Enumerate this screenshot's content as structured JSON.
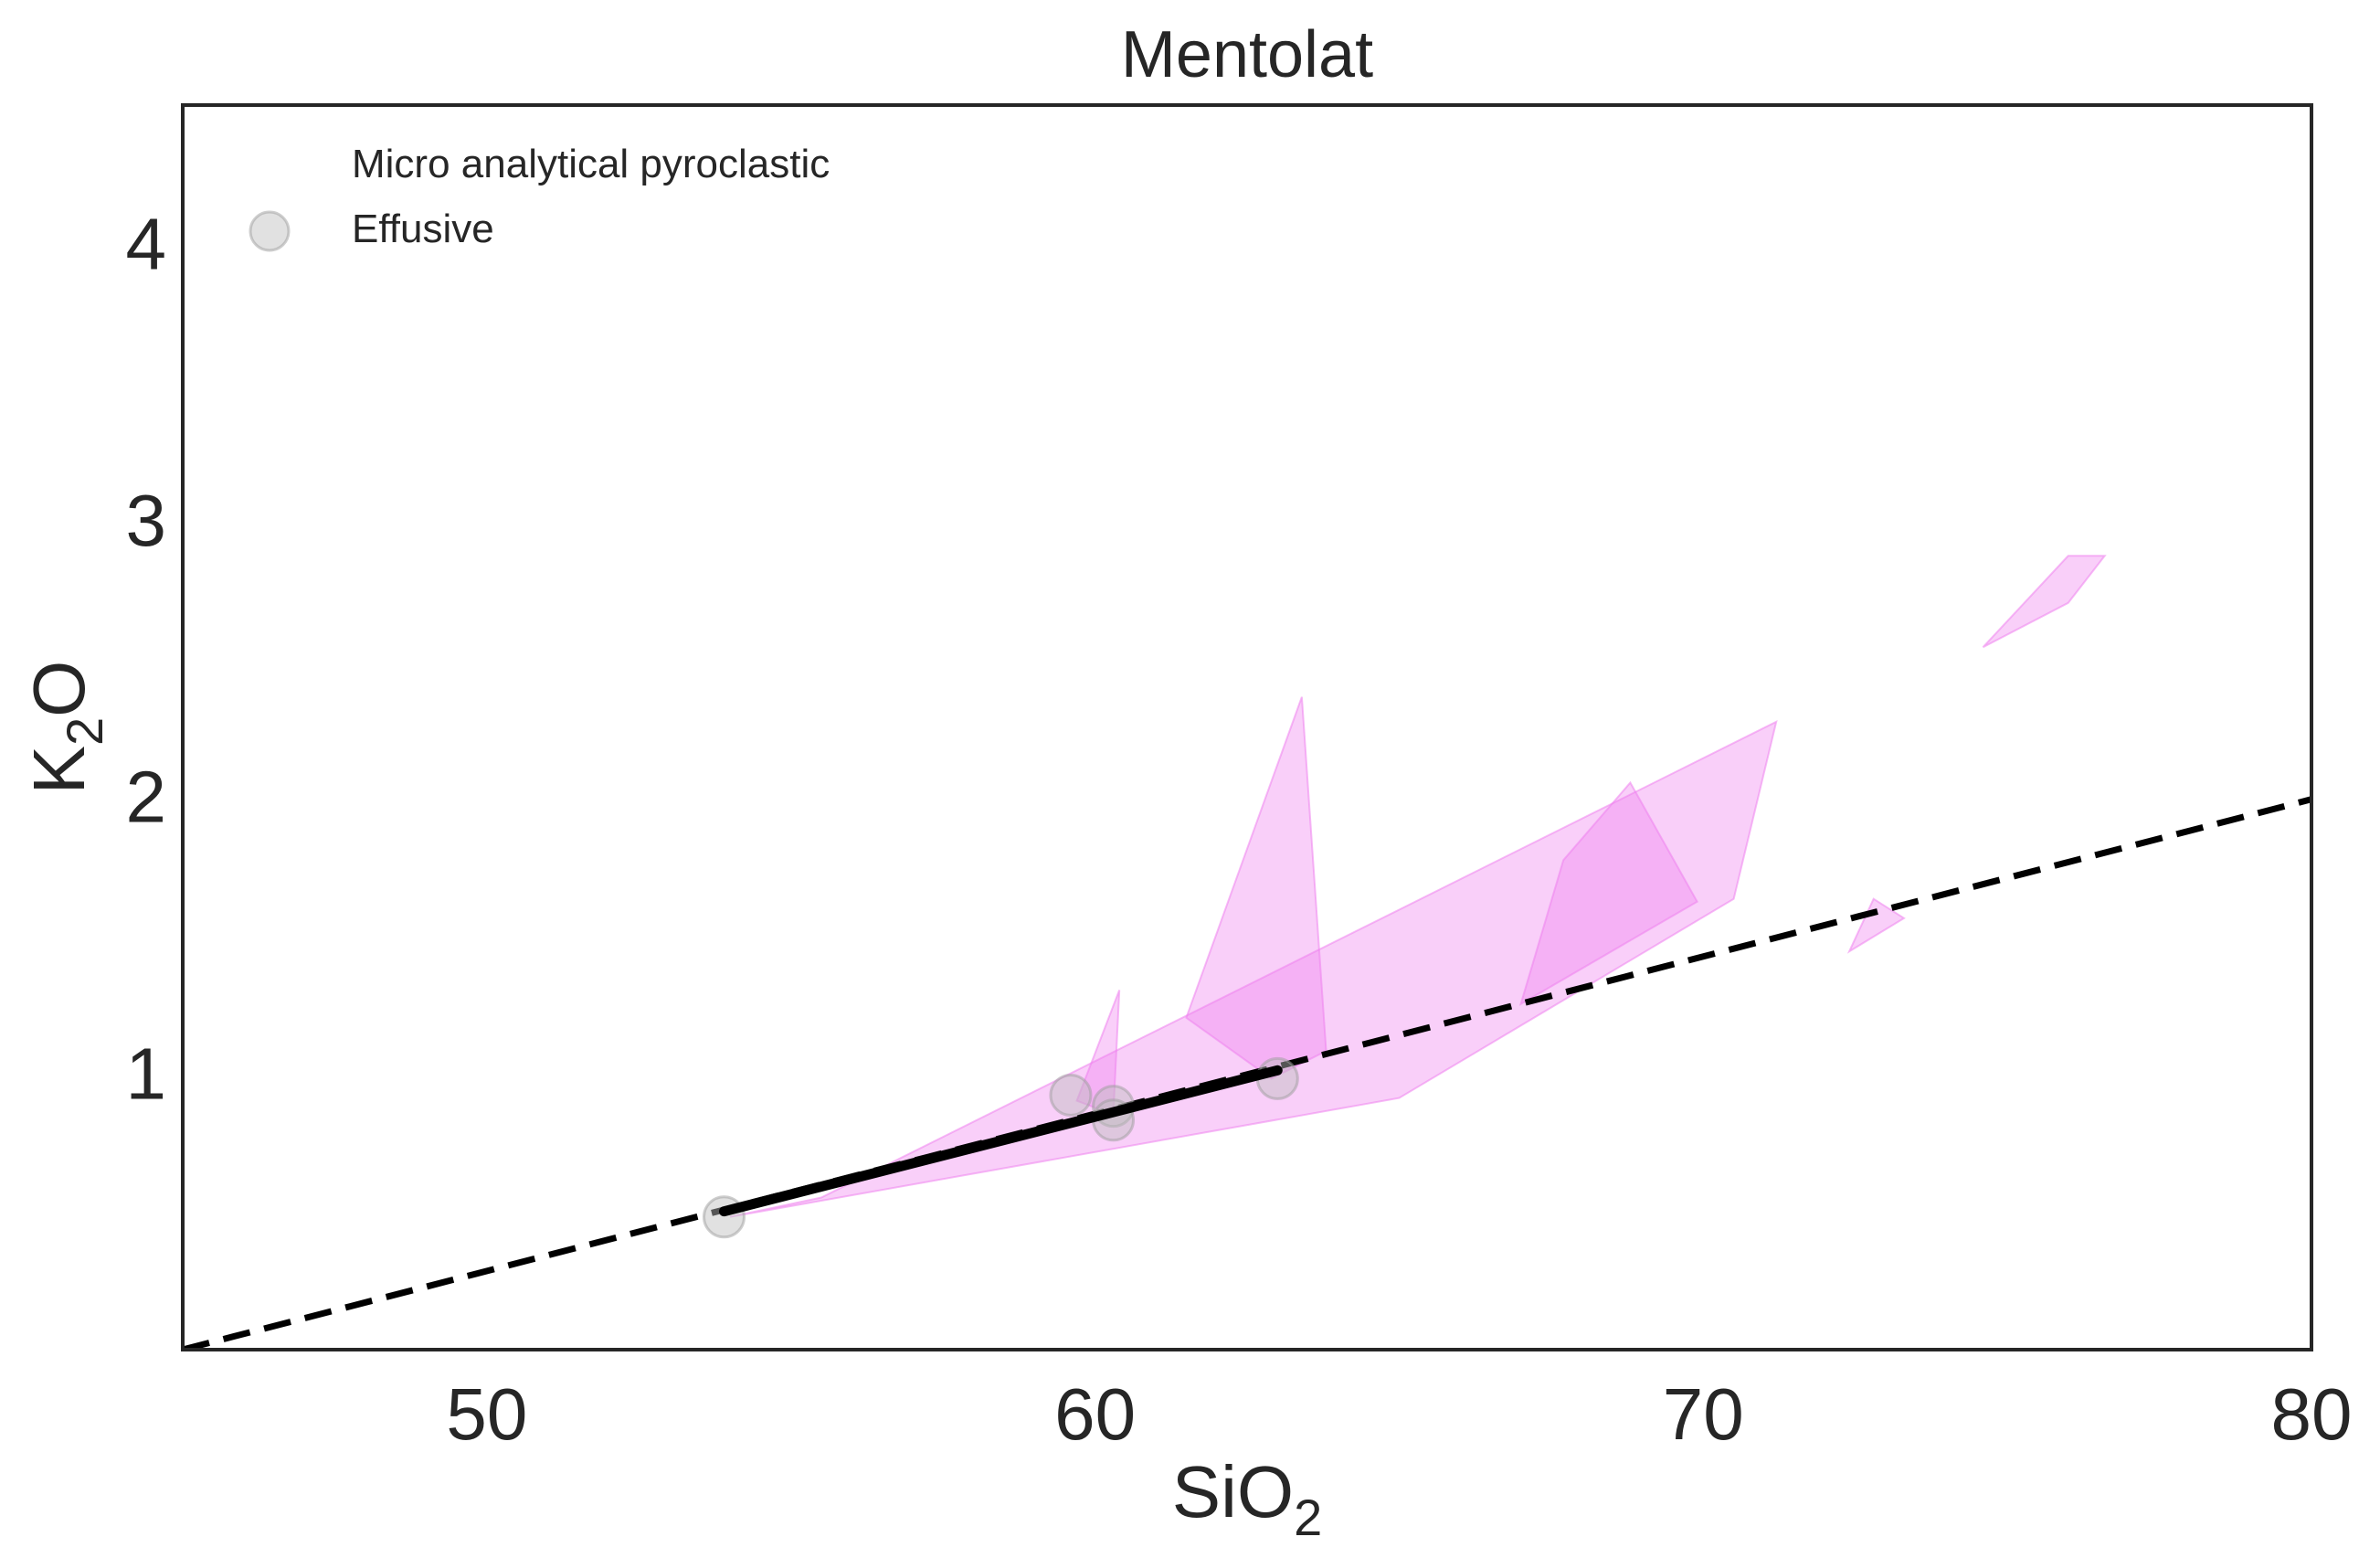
{
  "chart_data": {
    "type": "scatter",
    "title": "Mentolat",
    "xlabel": {
      "base": "SiO",
      "sub": "2"
    },
    "ylabel": {
      "base": "K",
      "sub": "2",
      "tail": "O"
    },
    "xlim": [
      45,
      80
    ],
    "ylim": [
      0,
      4.5
    ],
    "xticks": [
      50,
      60,
      70,
      80
    ],
    "yticks": [
      1,
      2,
      3,
      4
    ],
    "grid": false,
    "legend": {
      "placement": "top-left",
      "entries": [
        {
          "label": "Micro analytical pyroclastic",
          "marker": "none"
        },
        {
          "label": "Effusive",
          "marker": "circle"
        }
      ]
    },
    "colors": {
      "polygon_fill": "#ee82ee",
      "point_fill": "#bdbdbd",
      "line": "#000000",
      "frame": "#262626"
    },
    "polygons": [
      {
        "points": [
          [
            54.0,
            0.48
          ],
          [
            55.5,
            0.55
          ],
          [
            71.2,
            2.27
          ],
          [
            70.5,
            1.63
          ],
          [
            65.0,
            0.91
          ],
          [
            54.0,
            0.48
          ]
        ]
      },
      {
        "points": [
          [
            59.7,
            0.9
          ],
          [
            60.4,
            1.3
          ],
          [
            60.3,
            0.85
          ],
          [
            59.7,
            0.9
          ]
        ]
      },
      {
        "points": [
          [
            61.5,
            1.2
          ],
          [
            63.4,
            2.36
          ],
          [
            63.8,
            1.08
          ],
          [
            62.9,
            0.98
          ],
          [
            61.5,
            1.2
          ]
        ]
      },
      {
        "points": [
          [
            67.0,
            1.25
          ],
          [
            67.7,
            1.77
          ],
          [
            68.8,
            2.05
          ],
          [
            69.9,
            1.62
          ],
          [
            67.0,
            1.25
          ]
        ]
      },
      {
        "points": [
          [
            72.4,
            1.44
          ],
          [
            72.8,
            1.63
          ],
          [
            73.3,
            1.56
          ],
          [
            72.4,
            1.44
          ]
        ]
      },
      {
        "points": [
          [
            74.6,
            2.54
          ],
          [
            76.0,
            2.7
          ],
          [
            76.6,
            2.87
          ],
          [
            76.0,
            2.87
          ],
          [
            74.6,
            2.54
          ]
        ]
      }
    ],
    "effusive_points": [
      {
        "x": 53.9,
        "y": 0.48
      },
      {
        "x": 59.6,
        "y": 0.92
      },
      {
        "x": 60.3,
        "y": 0.88
      },
      {
        "x": 60.3,
        "y": 0.83
      },
      {
        "x": 63.0,
        "y": 0.98
      }
    ],
    "dashed_line": {
      "from": [
        45,
        0.0
      ],
      "to": [
        80,
        1.99
      ]
    },
    "solid_line": {
      "from": [
        53.9,
        0.5
      ],
      "to": [
        63.0,
        1.01
      ]
    }
  }
}
